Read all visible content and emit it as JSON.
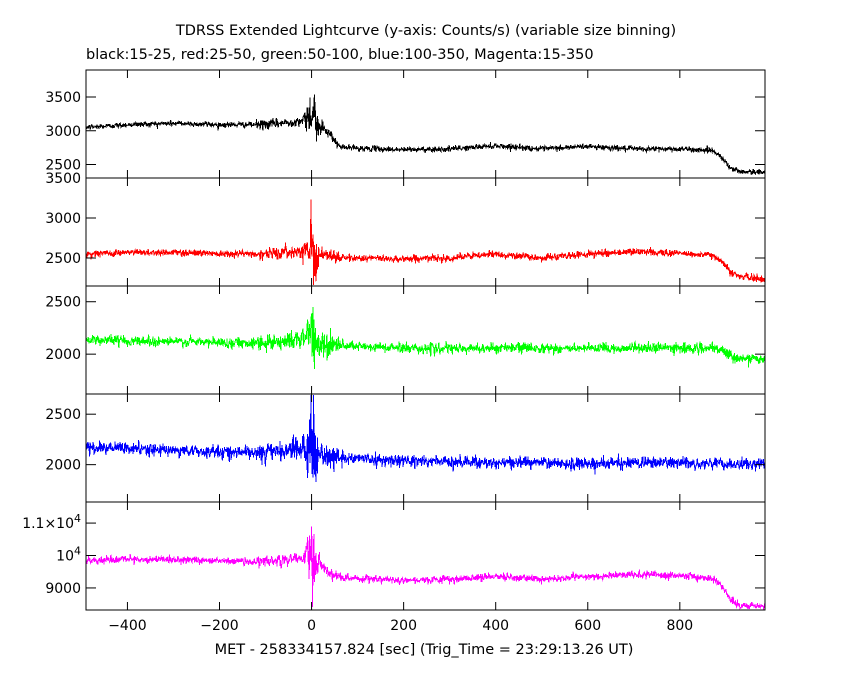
{
  "title": "TDRSS Extended Lightcurve (y-axis: Counts/s) (variable size binning)",
  "subtitle": "black:15-25, red:25-50, green:50-100, blue:100-350, Magenta:15-350",
  "xlabel": "MET - 258334157.824 [sec] (Trig_Time = 23:29:13.26 UT)",
  "chart_data": {
    "type": "line",
    "title": "TDRSS Extended Lightcurve (y-axis: Counts/s) (variable size binning)",
    "subtitle": "black:15-25, red:25-50, green:50-100, blue:100-350, Magenta:15-350",
    "xlabel": "MET - 258334157.824 [sec] (Trig_Time = 23:29:13.26 UT)",
    "ylabel": "",
    "xlim": [
      -490,
      985
    ],
    "x_ticks": [
      -400,
      -200,
      0,
      200,
      400,
      600,
      800
    ],
    "x_tick_labels": [
      "-400",
      "-200",
      "0",
      "200",
      "400",
      "600",
      "800"
    ],
    "grid": false,
    "legend": "none",
    "panels": [
      {
        "band": "15-25",
        "color": "#000000",
        "ylim": [
          2300,
          3900
        ],
        "y_ticks": [
          2500,
          3000,
          3500
        ],
        "y_tick_labels": [
          "2500",
          "3000",
          "3500"
        ],
        "x": [
          -490,
          -400,
          -300,
          -200,
          -110,
          -50,
          -15,
          0,
          8,
          20,
          40,
          60,
          100,
          200,
          300,
          400,
          500,
          600,
          700,
          800,
          870,
          890,
          910,
          930,
          985
        ],
        "y": [
          3050,
          3090,
          3110,
          3090,
          3090,
          3120,
          3160,
          3300,
          3150,
          3050,
          2950,
          2760,
          2740,
          2720,
          2730,
          2780,
          2730,
          2770,
          2730,
          2730,
          2710,
          2620,
          2440,
          2400,
          2380
        ],
        "noise": 20,
        "burst_amplitude": 600
      },
      {
        "band": "25-50",
        "color": "#ff0000",
        "ylim": [
          2150,
          3500
        ],
        "y_ticks": [
          2500,
          3000,
          3500
        ],
        "y_tick_labels": [
          "2500",
          "3000",
          "3500"
        ],
        "x": [
          -490,
          -400,
          -300,
          -200,
          -110,
          -50,
          -15,
          0,
          8,
          20,
          40,
          60,
          100,
          200,
          300,
          400,
          500,
          600,
          700,
          800,
          870,
          890,
          910,
          930,
          985
        ],
        "y": [
          2550,
          2570,
          2570,
          2560,
          2550,
          2570,
          2600,
          2700,
          2560,
          2530,
          2520,
          2500,
          2500,
          2490,
          2500,
          2550,
          2500,
          2550,
          2580,
          2560,
          2530,
          2480,
          2320,
          2270,
          2230
        ],
        "noise": 22,
        "burst_amplitude": 500
      },
      {
        "band": "50-100",
        "color": "#00ff00",
        "ylim": [
          1620,
          2650
        ],
        "y_ticks": [
          2000,
          2500
        ],
        "y_tick_labels": [
          "2000",
          "2500"
        ],
        "x": [
          -490,
          -400,
          -300,
          -200,
          -110,
          -50,
          -15,
          0,
          8,
          20,
          40,
          60,
          100,
          200,
          300,
          400,
          500,
          600,
          700,
          800,
          870,
          890,
          910,
          930,
          985
        ],
        "y": [
          2140,
          2130,
          2120,
          2110,
          2110,
          2130,
          2150,
          2250,
          2120,
          2090,
          2080,
          2080,
          2070,
          2060,
          2050,
          2060,
          2060,
          2050,
          2060,
          2060,
          2050,
          2040,
          1990,
          1960,
          1950
        ],
        "noise": 25,
        "burst_amplitude": 420
      },
      {
        "band": "100-350",
        "color": "#0000ff",
        "ylim": [
          1630,
          2700
        ],
        "y_ticks": [
          2000,
          2500
        ],
        "y_tick_labels": [
          "2000",
          "2500"
        ],
        "x": [
          -490,
          -400,
          -300,
          -200,
          -110,
          -50,
          -15,
          0,
          8,
          20,
          40,
          60,
          100,
          200,
          300,
          400,
          500,
          600,
          700,
          800,
          870,
          890,
          910,
          930,
          985
        ],
        "y": [
          2170,
          2160,
          2140,
          2130,
          2120,
          2140,
          2160,
          2260,
          2120,
          2100,
          2080,
          2070,
          2060,
          2040,
          2030,
          2020,
          2020,
          2010,
          2020,
          2020,
          2010,
          2010,
          2000,
          2000,
          2000
        ],
        "noise": 30,
        "burst_amplitude": 500
      },
      {
        "band": "15-350",
        "color": "#ff00ff",
        "ylim": [
          8320,
          11650
        ],
        "y_ticks": [
          9000,
          10000,
          11000
        ],
        "y_tick_labels": [
          "9000",
          "10^4",
          "1.1×10^4"
        ],
        "x": [
          -490,
          -400,
          -300,
          -200,
          -110,
          -50,
          -15,
          0,
          8,
          20,
          40,
          60,
          100,
          200,
          300,
          400,
          500,
          600,
          700,
          800,
          870,
          890,
          910,
          930,
          985
        ],
        "y": [
          9850,
          9870,
          9880,
          9840,
          9800,
          9880,
          9950,
          10250,
          9900,
          9700,
          9450,
          9330,
          9300,
          9250,
          9260,
          9360,
          9260,
          9350,
          9420,
          9370,
          9300,
          9100,
          8650,
          8480,
          8440
        ],
        "noise": 55,
        "burst_amplitude": 1450
      }
    ]
  }
}
